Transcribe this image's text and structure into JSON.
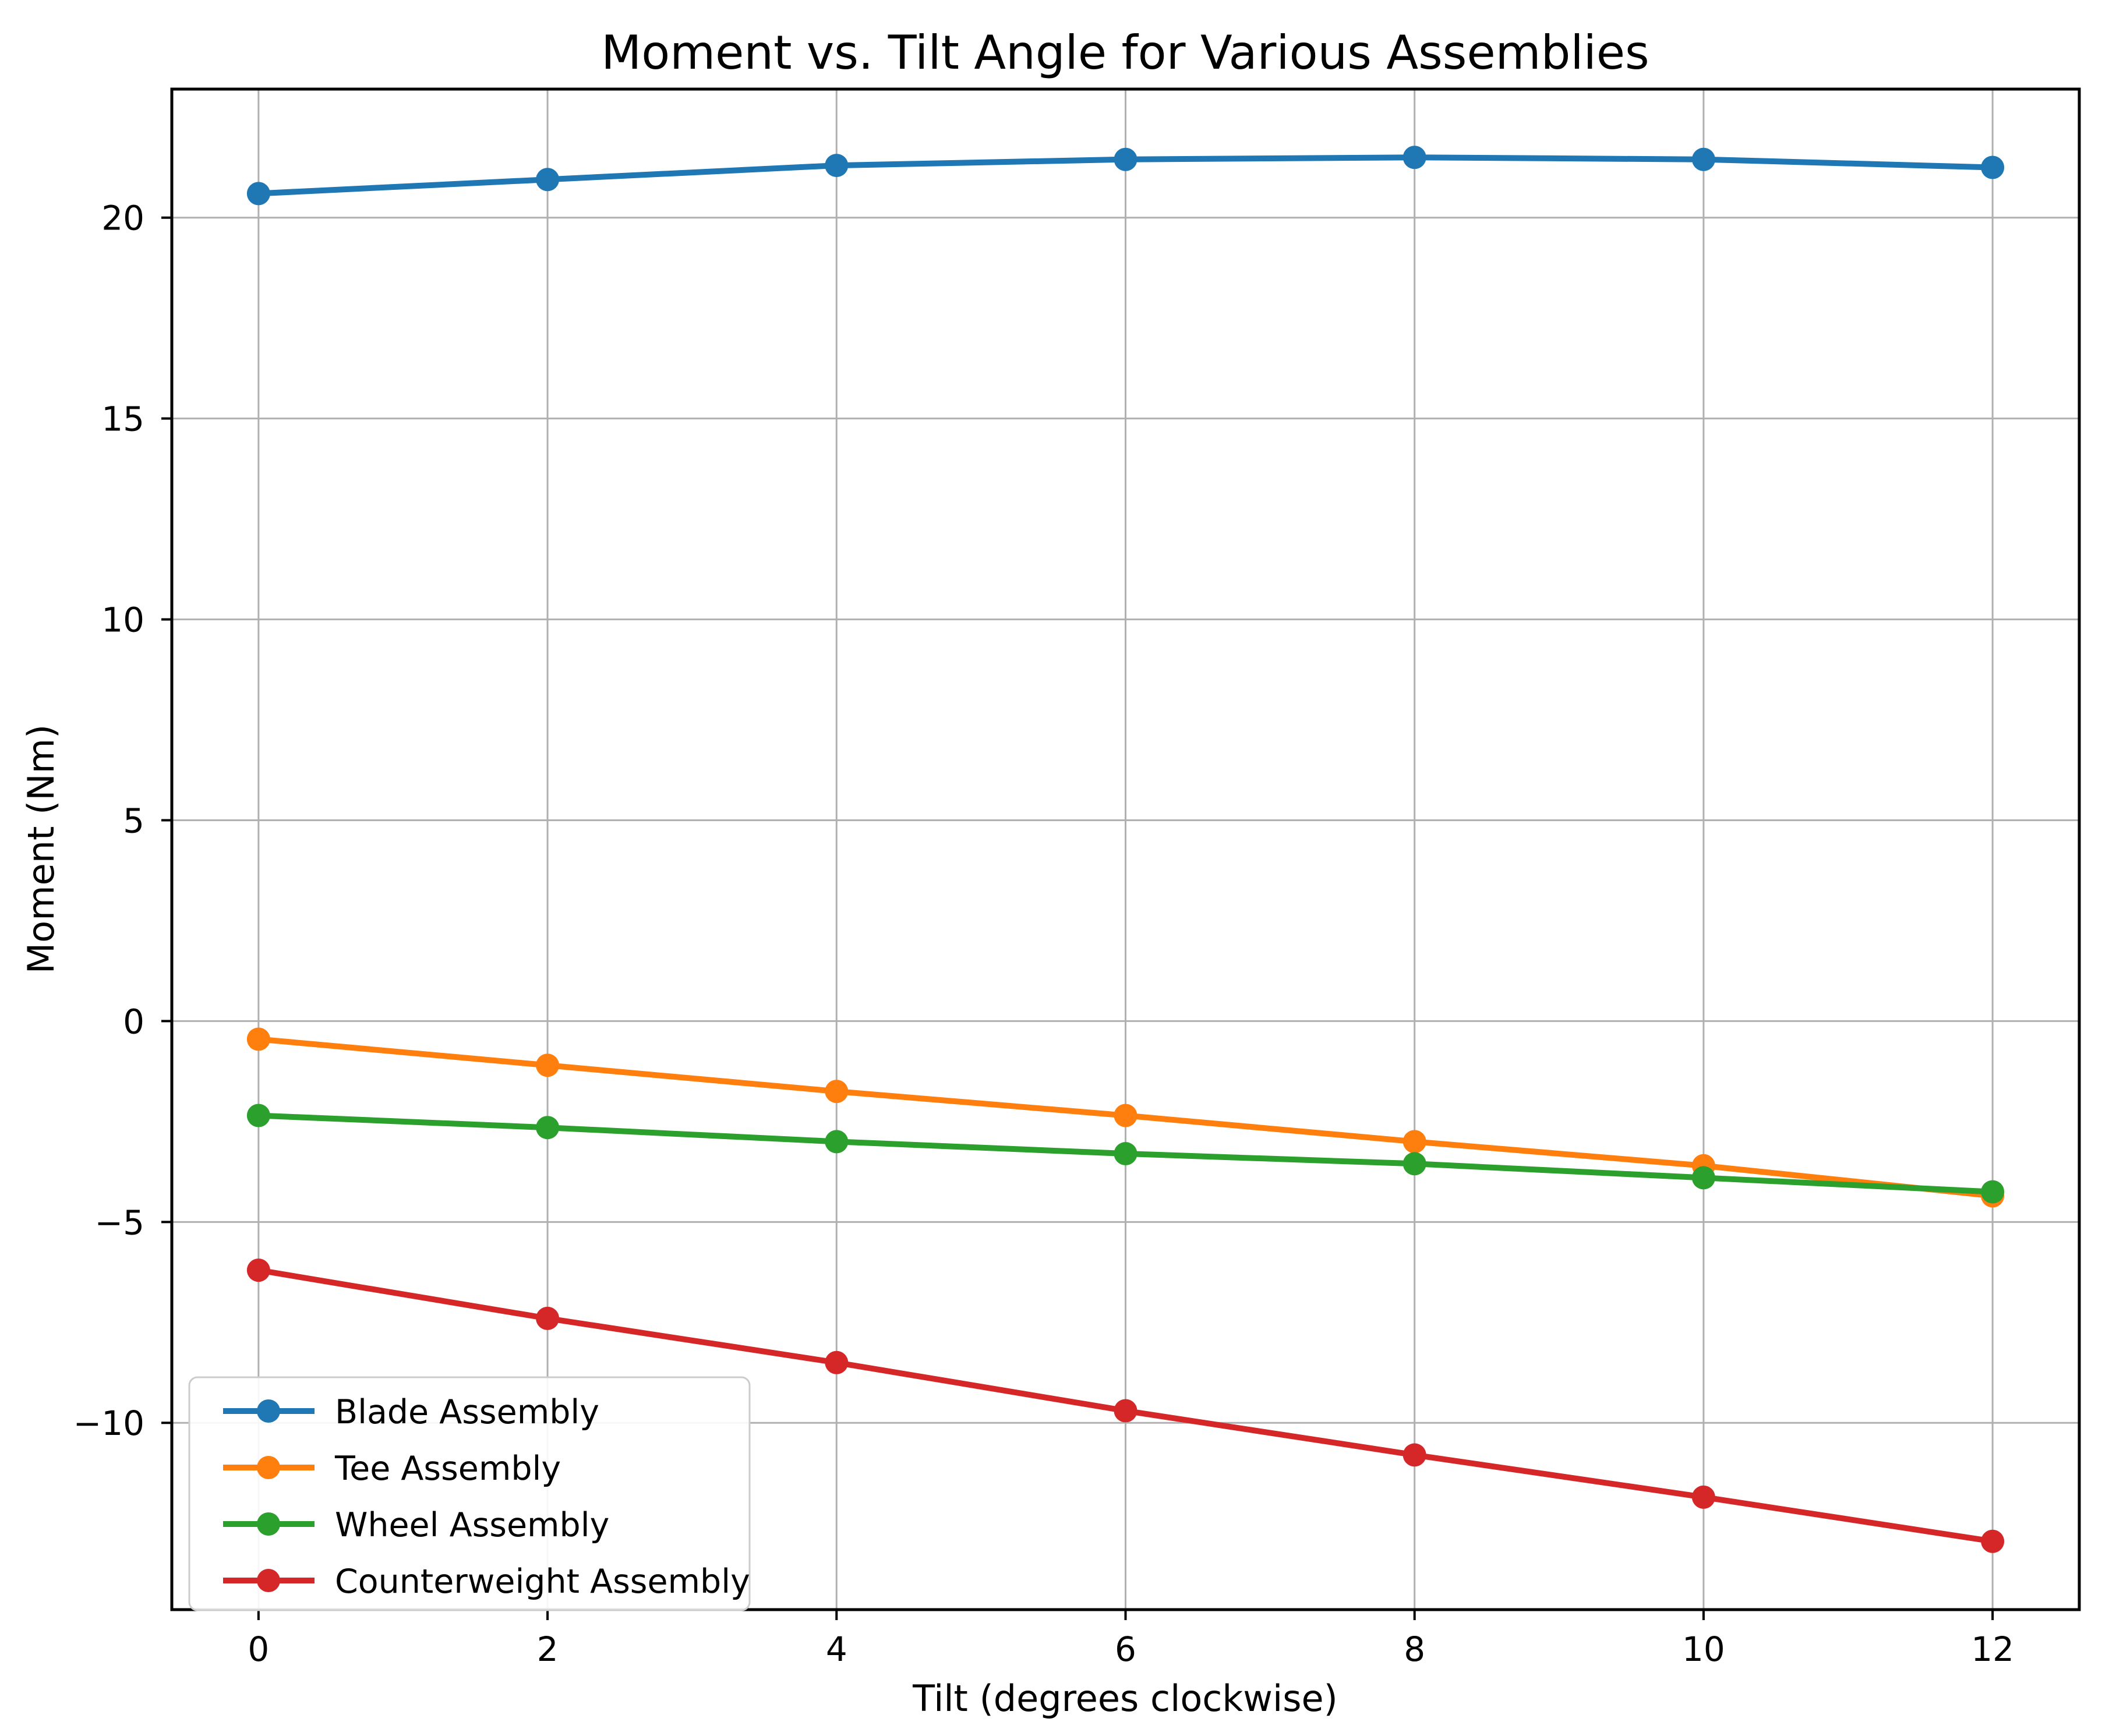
{
  "chart_data": {
    "type": "line",
    "title": "Moment vs. Tilt Angle for Various Assemblies",
    "xlabel": "Tilt (degrees clockwise)",
    "ylabel": "Moment (Nm)",
    "x": [
      0,
      2,
      4,
      6,
      8,
      10,
      12
    ],
    "xticks": [
      0,
      2,
      4,
      6,
      8,
      10,
      12
    ],
    "yticks": [
      20,
      15,
      10,
      5,
      0,
      -5,
      -10
    ],
    "xlim": [
      -0.6,
      12.6
    ],
    "ylim": [
      -14.65,
      23.2
    ],
    "grid": true,
    "legend_position": "lower left",
    "colors": {
      "grid": "#b0b0b0",
      "spine": "#000000",
      "legend_border": "#cccccc",
      "background": "#ffffff"
    },
    "series": [
      {
        "name": "Blade Assembly",
        "color": "#1f77b4",
        "marker": "circle",
        "values": [
          20.6,
          20.95,
          21.3,
          21.45,
          21.5,
          21.45,
          21.25
        ]
      },
      {
        "name": "Tee Assembly",
        "color": "#ff7f0e",
        "marker": "circle",
        "values": [
          -0.45,
          -1.1,
          -1.75,
          -2.35,
          -3.0,
          -3.6,
          -4.35
        ]
      },
      {
        "name": "Wheel Assembly",
        "color": "#2ca02c",
        "marker": "circle",
        "values": [
          -2.35,
          -2.65,
          -3.0,
          -3.3,
          -3.55,
          -3.9,
          -4.25
        ]
      },
      {
        "name": "Counterweight Assembly",
        "color": "#d62728",
        "marker": "circle",
        "values": [
          -6.2,
          -7.4,
          -8.5,
          -9.7,
          -10.8,
          -11.85,
          -12.95
        ]
      }
    ]
  }
}
